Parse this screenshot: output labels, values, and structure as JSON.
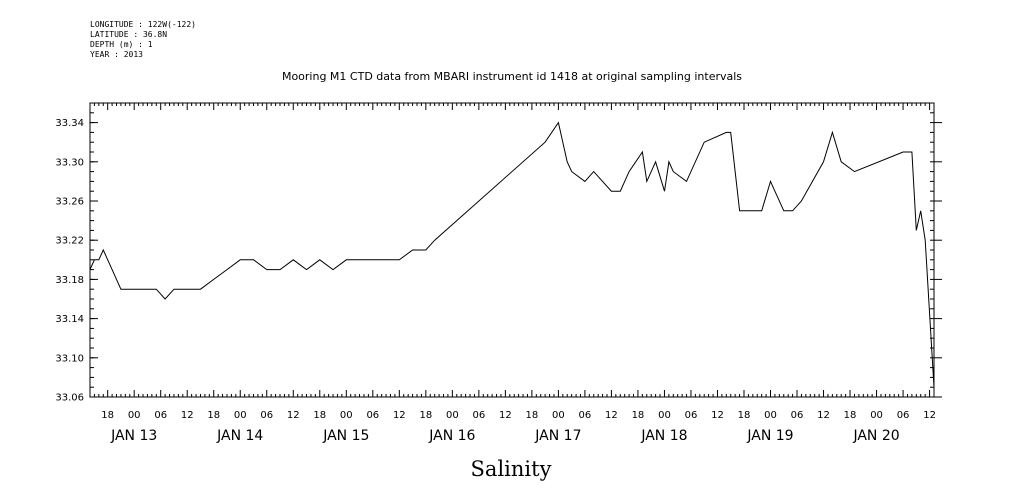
{
  "header": {
    "longitude": "LONGITUDE : 122W(-122)",
    "latitude": "LATITUDE : 36.8N",
    "depth": "DEPTH (m) : 1",
    "year": "YEAR : 2013"
  },
  "chart_data": {
    "type": "line",
    "title": "Mooring M1 CTD data from MBARI instrument id 1418 at original sampling intervals",
    "xlabel": "Salinity",
    "ylabel": "",
    "ylim": [
      33.06,
      33.36
    ],
    "xlim": [
      "2013-01-12 14:00",
      "2013-01-20 13:00"
    ],
    "y_ticks": [
      "33.06",
      "33.10",
      "33.14",
      "33.18",
      "33.22",
      "33.26",
      "33.30",
      "33.34"
    ],
    "hour_tick_labels": [
      "18",
      "00",
      "06",
      "12",
      "18",
      "00",
      "06",
      "12",
      "18",
      "00",
      "06",
      "12",
      "18",
      "00",
      "06",
      "12",
      "18",
      "00",
      "06",
      "12",
      "18",
      "00",
      "06",
      "12",
      "18",
      "00",
      "06",
      "12",
      "18",
      "00",
      "06",
      "12"
    ],
    "day_labels": [
      "JAN 13",
      "JAN 14",
      "JAN 15",
      "JAN 16",
      "JAN 17",
      "JAN 18",
      "JAN 19",
      "JAN 20"
    ],
    "grid": false,
    "series": [
      {
        "color": "#000000",
        "x": [
          "2013-01-12 14:00",
          "2013-01-12 15:00",
          "2013-01-12 16:00",
          "2013-01-12 17:00",
          "2013-01-12 18:00",
          "2013-01-12 19:00",
          "2013-01-12 20:00",
          "2013-01-12 21:00",
          "2013-01-13 00:00",
          "2013-01-13 03:00",
          "2013-01-13 05:00",
          "2013-01-13 07:00",
          "2013-01-13 09:00",
          "2013-01-13 12:00",
          "2013-01-13 15:00",
          "2013-01-13 18:00",
          "2013-01-13 21:00",
          "2013-01-14 00:00",
          "2013-01-14 03:00",
          "2013-01-14 06:00",
          "2013-01-14 09:00",
          "2013-01-14 12:00",
          "2013-01-14 15:00",
          "2013-01-14 18:00",
          "2013-01-14 21:00",
          "2013-01-15 00:00",
          "2013-01-15 03:00",
          "2013-01-15 06:00",
          "2013-01-15 09:00",
          "2013-01-15 12:00",
          "2013-01-15 15:00",
          "2013-01-15 18:00",
          "2013-01-15 20:00",
          "2013-01-16 21:00",
          "2013-01-17 00:00",
          "2013-01-17 01:00",
          "2013-01-17 02:00",
          "2013-01-17 03:00",
          "2013-01-17 06:00",
          "2013-01-17 08:00",
          "2013-01-17 12:00",
          "2013-01-17 14:00",
          "2013-01-17 16:00",
          "2013-01-17 19:00",
          "2013-01-17 20:00",
          "2013-01-17 22:00",
          "2013-01-18 00:00",
          "2013-01-18 01:00",
          "2013-01-18 02:00",
          "2013-01-18 05:00",
          "2013-01-18 09:00",
          "2013-01-18 14:00",
          "2013-01-18 15:00",
          "2013-01-18 17:00",
          "2013-01-18 20:00",
          "2013-01-18 22:00",
          "2013-01-19 00:00",
          "2013-01-19 01:00",
          "2013-01-19 03:00",
          "2013-01-19 05:00",
          "2013-01-19 07:00",
          "2013-01-19 12:00",
          "2013-01-19 14:00",
          "2013-01-19 16:00",
          "2013-01-19 19:00",
          "2013-01-20 06:00",
          "2013-01-20 08:00",
          "2013-01-20 09:00",
          "2013-01-20 10:00",
          "2013-01-20 11:00",
          "2013-01-20 13:00"
        ],
        "y": [
          33.19,
          33.2,
          33.2,
          33.21,
          33.2,
          33.19,
          33.18,
          33.17,
          33.17,
          33.17,
          33.17,
          33.16,
          33.17,
          33.17,
          33.17,
          33.18,
          33.19,
          33.2,
          33.2,
          33.19,
          33.19,
          33.2,
          33.19,
          33.2,
          33.19,
          33.2,
          33.2,
          33.2,
          33.2,
          33.2,
          33.21,
          33.21,
          33.22,
          33.32,
          33.34,
          33.32,
          33.3,
          33.29,
          33.28,
          33.29,
          33.27,
          33.27,
          33.29,
          33.31,
          33.28,
          33.3,
          33.27,
          33.3,
          33.29,
          33.28,
          33.32,
          33.33,
          33.33,
          33.25,
          33.25,
          33.25,
          33.28,
          33.27,
          33.25,
          33.25,
          33.26,
          33.3,
          33.33,
          33.3,
          33.29,
          33.31,
          33.31,
          33.23,
          33.25,
          33.22,
          33.07
        ]
      }
    ]
  }
}
